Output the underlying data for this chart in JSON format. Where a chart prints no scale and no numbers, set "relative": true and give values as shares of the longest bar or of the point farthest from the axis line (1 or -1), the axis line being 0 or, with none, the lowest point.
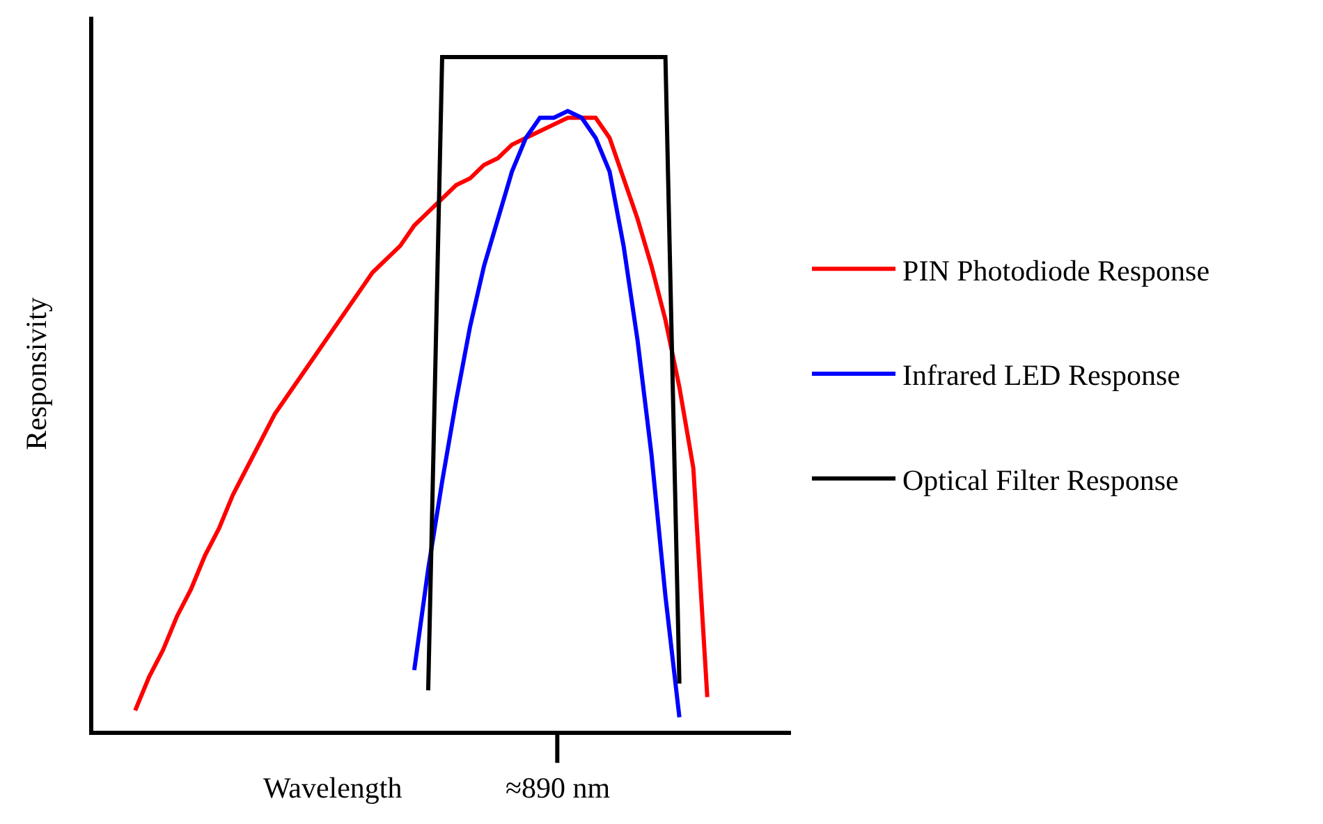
{
  "chart_data": {
    "type": "line",
    "relative": true,
    "xlabel": "Wavelength",
    "ylabel": "Responsivity",
    "categories": [
      null,
      null,
      null,
      null,
      null,
      null,
      null,
      null,
      null,
      null,
      null,
      null,
      null,
      null,
      null,
      null,
      null,
      null,
      null,
      null,
      null,
      null,
      null,
      null,
      null,
      null,
      null,
      null,
      null,
      null,
      null,
      null,
      null,
      null,
      null,
      null,
      null,
      null,
      null,
      null,
      null,
      null,
      null,
      null,
      null,
      null,
      null,
      null,
      null,
      null,
      null
    ],
    "annotations": [
      "≈890 nm"
    ],
    "legend": "right",
    "marker": "none",
    "line_style": "solid",
    "series": [
      {
        "name": "PIN Photodiode Response",
        "color": "#ff0000",
        "values": [
          null,
          null,
          null,
          0.03,
          0.08,
          0.12,
          0.17,
          0.21,
          0.26,
          0.3,
          0.35,
          0.39,
          0.43,
          0.47,
          0.5,
          0.53,
          0.56,
          0.59,
          0.62,
          0.65,
          0.68,
          0.7,
          0.72,
          0.75,
          0.77,
          0.79,
          0.81,
          0.82,
          0.84,
          0.85,
          0.87,
          0.88,
          0.89,
          0.9,
          0.91,
          0.91,
          0.91,
          0.88,
          0.82,
          0.76,
          0.69,
          0.61,
          0.51,
          0.39,
          0.05,
          null,
          null,
          null,
          null,
          null,
          null
        ]
      },
      {
        "name": "Infrared LED Response",
        "color": "#0000ff",
        "values": [
          null,
          null,
          null,
          null,
          null,
          null,
          null,
          null,
          null,
          null,
          null,
          null,
          null,
          null,
          null,
          null,
          null,
          null,
          null,
          null,
          null,
          null,
          null,
          0.09,
          0.24,
          0.37,
          0.49,
          0.6,
          0.69,
          0.76,
          0.83,
          0.88,
          0.91,
          0.91,
          0.92,
          0.91,
          0.88,
          0.83,
          0.72,
          0.58,
          0.41,
          0.2,
          0.02,
          null,
          null,
          null,
          null,
          null,
          null,
          null,
          null
        ]
      },
      {
        "name": "Optical Filter Response",
        "color": "#000000",
        "values": [
          null,
          null,
          null,
          null,
          null,
          null,
          null,
          null,
          null,
          null,
          null,
          null,
          null,
          null,
          null,
          null,
          null,
          null,
          null,
          null,
          null,
          null,
          null,
          null,
          0.06,
          1,
          1,
          1,
          1,
          1,
          1,
          1,
          1,
          1,
          1,
          1,
          1,
          1,
          1,
          1,
          1,
          1,
          0.07,
          null,
          null,
          null,
          null,
          null,
          null,
          null,
          null
        ]
      }
    ]
  }
}
